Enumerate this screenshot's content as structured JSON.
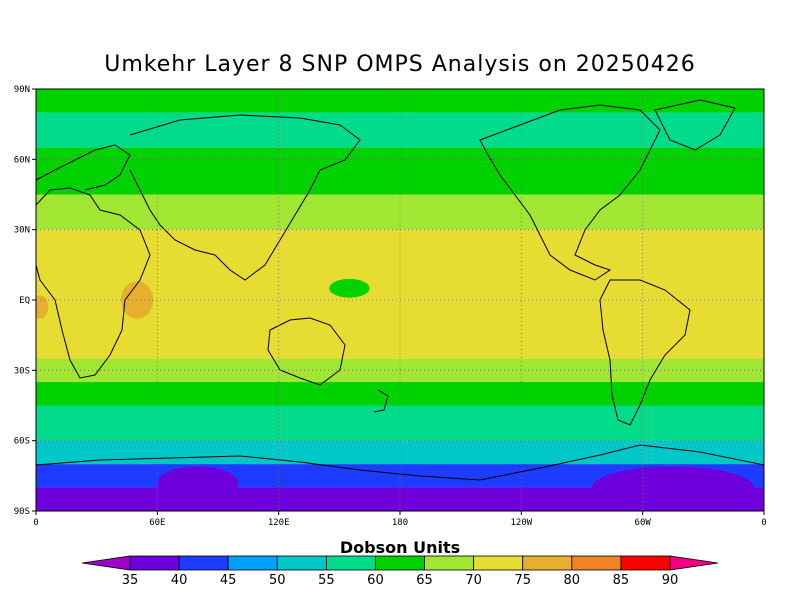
{
  "title": "Umkehr Layer 8 SNP OMPS Analysis on 20250426",
  "map": {
    "lat_labels": [
      "90N",
      "60N",
      "30N",
      "EQ",
      "30S",
      "60S",
      "90S"
    ],
    "lat_values": [
      90,
      60,
      30,
      0,
      -30,
      -60,
      -90
    ],
    "lon_labels": [
      "0",
      "60E",
      "120E",
      "180",
      "120W",
      "60W",
      "0"
    ],
    "lon_values": [
      0,
      60,
      120,
      180,
      240,
      300,
      360
    ],
    "projection": "cylindrical equidistant",
    "grid": "dotted",
    "field_bands": [
      {
        "lat_from": 90,
        "lat_to": 80,
        "value": 60
      },
      {
        "lat_from": 80,
        "lat_to": 65,
        "value": 55
      },
      {
        "lat_from": 65,
        "lat_to": 45,
        "value": 62
      },
      {
        "lat_from": 45,
        "lat_to": 30,
        "value": 67
      },
      {
        "lat_from": 30,
        "lat_to": -25,
        "value": 72
      },
      {
        "lat_from": -25,
        "lat_to": -35,
        "value": 67
      },
      {
        "lat_from": -35,
        "lat_to": -45,
        "value": 62
      },
      {
        "lat_from": -45,
        "lat_to": -60,
        "value": 55
      },
      {
        "lat_from": -60,
        "lat_to": -70,
        "value": 50
      },
      {
        "lat_from": -70,
        "lat_to": -80,
        "value": 42
      },
      {
        "lat_from": -80,
        "lat_to": -90,
        "value": 37
      }
    ],
    "field_blobs": [
      {
        "lon": 50,
        "lat": 0,
        "rlon": 8,
        "rlat": 8,
        "value": 78
      },
      {
        "lon": 2,
        "lat": -3,
        "rlon": 4,
        "rlat": 5,
        "value": 78
      },
      {
        "lon": 155,
        "lat": 5,
        "rlon": 10,
        "rlat": 4,
        "value": 62
      },
      {
        "lon": 315,
        "lat": -80,
        "rlon": 40,
        "rlat": 9,
        "value": 37
      },
      {
        "lon": 80,
        "lat": -78,
        "rlon": 20,
        "rlat": 7,
        "value": 37
      }
    ]
  },
  "colorbar": {
    "title": "Dobson Units",
    "levels": [
      35,
      40,
      45,
      50,
      55,
      60,
      65,
      70,
      75,
      80,
      85,
      90
    ],
    "labels": [
      "35",
      "40",
      "45",
      "50",
      "55",
      "60",
      "65",
      "70",
      "75",
      "80",
      "85",
      "90"
    ],
    "colors": [
      "#a000c8",
      "#6e00dc",
      "#1e3cff",
      "#00a0ff",
      "#00c8c8",
      "#00dc8c",
      "#00d200",
      "#a0e632",
      "#e6dc32",
      "#e6af2d",
      "#f08228",
      "#fa0000",
      "#f00082"
    ]
  }
}
